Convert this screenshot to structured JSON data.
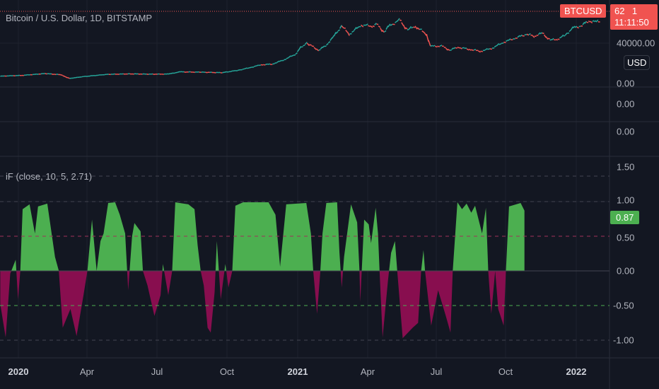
{
  "symbol_title": "Bitcoin / U.S. Dollar, 1D, BITSTAMP",
  "symbol_badge": "BTCUSD",
  "last_price": "62    1",
  "countdown": "11:11:50",
  "currency_button": "USD",
  "price_axis": {
    "label_40000": "40000.00",
    "label_0": "0.00"
  },
  "empty_panes": [
    {
      "axis_label": "0.00"
    },
    {
      "axis_label": "0.00"
    }
  ],
  "indicator": {
    "title": "iF (close, 10, 5, 2.71)",
    "current_value": "0.87",
    "axis_labels": [
      "1.50",
      "1.00",
      "0.50",
      "0.00",
      "-0.50",
      "-1.00"
    ]
  },
  "time_axis": [
    "2020",
    "Apr",
    "Jul",
    "Oct",
    "2021",
    "Apr",
    "Jul",
    "Oct",
    "2022"
  ],
  "colors": {
    "bg": "#131722",
    "positive": "#4caf50",
    "negative": "#880e4f",
    "up": "#26a69a",
    "down": "#ef5350",
    "badge": "#f05350"
  },
  "chart_data": [
    {
      "type": "line",
      "title": "Bitcoin / U.S. Dollar, 1D, BITSTAMP",
      "x_unit": "days since 2020-01-01",
      "ylim": [
        0,
        70000
      ],
      "points": [
        [
          -18,
          7200
        ],
        [
          10,
          8000
        ],
        [
          40,
          9800
        ],
        [
          60,
          8700
        ],
        [
          72,
          5000
        ],
        [
          90,
          6800
        ],
        [
          120,
          9000
        ],
        [
          150,
          9500
        ],
        [
          180,
          9200
        ],
        [
          200,
          9300
        ],
        [
          215,
          11500
        ],
        [
          240,
          11200
        ],
        [
          270,
          10700
        ],
        [
          290,
          13000
        ],
        [
          305,
          15500
        ],
        [
          320,
          18500
        ],
        [
          335,
          19200
        ],
        [
          350,
          23500
        ],
        [
          365,
          29000
        ],
        [
          372,
          36000
        ],
        [
          380,
          40000
        ],
        [
          395,
          33000
        ],
        [
          405,
          38000
        ],
        [
          415,
          47000
        ],
        [
          425,
          57000
        ],
        [
          435,
          49000
        ],
        [
          450,
          58000
        ],
        [
          465,
          57000
        ],
        [
          470,
          59000
        ],
        [
          480,
          51000
        ],
        [
          485,
          56000
        ],
        [
          500,
          63000
        ],
        [
          510,
          53000
        ],
        [
          520,
          57000
        ],
        [
          535,
          49000
        ],
        [
          540,
          37000
        ],
        [
          555,
          37000
        ],
        [
          565,
          33000
        ],
        [
          575,
          36000
        ],
        [
          590,
          34000
        ],
        [
          605,
          32000
        ],
        [
          620,
          35000
        ],
        [
          635,
          41000
        ],
        [
          650,
          45000
        ],
        [
          665,
          49000
        ],
        [
          675,
          47000
        ],
        [
          685,
          50000
        ],
        [
          695,
          43000
        ],
        [
          705,
          44000
        ],
        [
          715,
          48000
        ],
        [
          725,
          55000
        ],
        [
          735,
          57000
        ],
        [
          745,
          62000
        ],
        [
          755,
          61000
        ],
        [
          760,
          61500
        ]
      ]
    },
    {
      "type": "area",
      "title": "iF (close, 10, 5, 2.71)",
      "x_unit": "days since 2020-01-01",
      "ylim": [
        -1.1,
        1.6
      ],
      "levels": [
        1.0,
        0.5,
        0.0,
        -0.5,
        -1.0
      ],
      "points": [
        [
          -18,
          -0.48
        ],
        [
          -11,
          -0.96
        ],
        [
          -5,
          -0.04
        ],
        [
          2,
          0.16
        ],
        [
          5,
          -0.41
        ],
        [
          8,
          0
        ],
        [
          11,
          0.89
        ],
        [
          20,
          0.96
        ],
        [
          27,
          0.54
        ],
        [
          31,
          0.93
        ],
        [
          43,
          0.97
        ],
        [
          53,
          0.2
        ],
        [
          58,
          0
        ],
        [
          63,
          -0.82
        ],
        [
          73,
          -0.55
        ],
        [
          81,
          -0.94
        ],
        [
          90,
          -0.35
        ],
        [
          95,
          0
        ],
        [
          101,
          0.74
        ],
        [
          107,
          0
        ],
        [
          112,
          0.43
        ],
        [
          116,
          0.54
        ],
        [
          122,
          0.98
        ],
        [
          131,
          0.99
        ],
        [
          137,
          0.81
        ],
        [
          144,
          0.54
        ],
        [
          148,
          -0.28
        ],
        [
          153,
          0.5
        ],
        [
          156,
          0.69
        ],
        [
          164,
          0.57
        ],
        [
          167,
          0
        ],
        [
          173,
          -0.21
        ],
        [
          182,
          -0.65
        ],
        [
          190,
          -0.35
        ],
        [
          193,
          0.1
        ],
        [
          200,
          -0.35
        ],
        [
          205,
          0
        ],
        [
          209,
          0.99
        ],
        [
          226,
          0.96
        ],
        [
          234,
          0.89
        ],
        [
          238,
          0.37
        ],
        [
          242,
          0
        ],
        [
          246,
          -0.21
        ],
        [
          251,
          -0.82
        ],
        [
          255,
          -0.89
        ],
        [
          260,
          -0.31
        ],
        [
          263,
          0.43
        ],
        [
          268,
          -0.41
        ],
        [
          274,
          0.1
        ],
        [
          278,
          -0.24
        ],
        [
          283,
          0
        ],
        [
          287,
          0.94
        ],
        [
          297,
          0.99
        ],
        [
          330,
          0.99
        ],
        [
          336,
          0.87
        ],
        [
          339,
          0.81
        ],
        [
          345,
          0.06
        ],
        [
          353,
          0.96
        ],
        [
          379,
          0.98
        ],
        [
          385,
          0.54
        ],
        [
          388,
          0
        ],
        [
          393,
          -0.62
        ],
        [
          397,
          -0.04
        ],
        [
          400,
          0.54
        ],
        [
          405,
          0.98
        ],
        [
          419,
          0.99
        ],
        [
          422,
          0.26
        ],
        [
          425,
          -0.24
        ],
        [
          428,
          0.2
        ],
        [
          437,
          0.96
        ],
        [
          445,
          0.7
        ],
        [
          448,
          0
        ],
        [
          449,
          -0.45
        ],
        [
          454,
          0.74
        ],
        [
          460,
          0.67
        ],
        [
          463,
          0.4
        ],
        [
          469,
          0.91
        ],
        [
          472,
          0.54
        ],
        [
          474,
          0
        ],
        [
          478,
          -0.96
        ],
        [
          485,
          -0.14
        ],
        [
          489,
          0.26
        ],
        [
          494,
          0.43
        ],
        [
          497,
          0
        ],
        [
          504,
          -0.97
        ],
        [
          517,
          -0.82
        ],
        [
          524,
          -0.75
        ],
        [
          528,
          0
        ],
        [
          531,
          0.3
        ],
        [
          533,
          0
        ],
        [
          541,
          -0.79
        ],
        [
          550,
          -0.28
        ],
        [
          560,
          -0.65
        ],
        [
          566,
          -0.89
        ],
        [
          569,
          0
        ],
        [
          575,
          0.99
        ],
        [
          581,
          0.89
        ],
        [
          587,
          0.97
        ],
        [
          593,
          0.84
        ],
        [
          598,
          0.94
        ],
        [
          607,
          0.54
        ],
        [
          612,
          0.91
        ],
        [
          615,
          0
        ],
        [
          619,
          -0.62
        ],
        [
          624,
          0
        ],
        [
          628,
          -0.55
        ],
        [
          635,
          -0.79
        ],
        [
          638,
          0
        ],
        [
          642,
          0.93
        ],
        [
          657,
          0.98
        ],
        [
          662,
          0.87
        ]
      ]
    }
  ]
}
